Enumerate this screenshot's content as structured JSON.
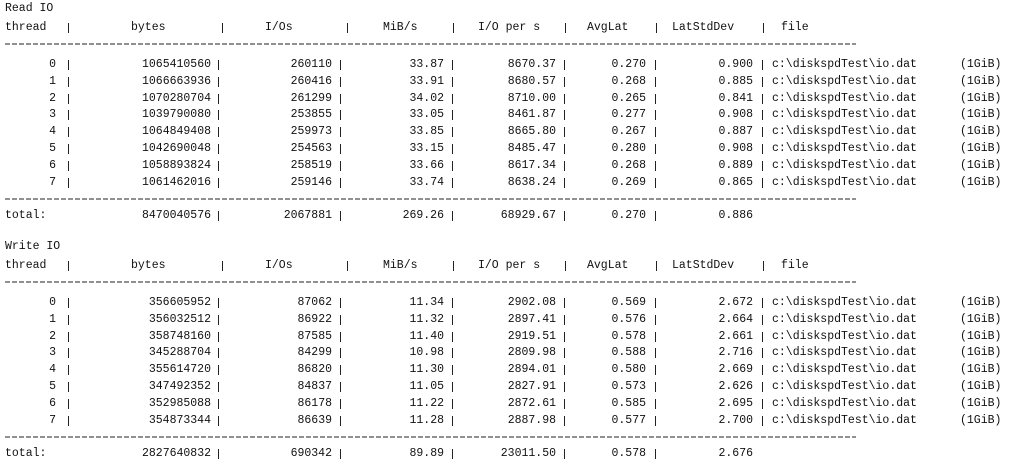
{
  "sections": [
    {
      "title": "Read IO",
      "headers": [
        "thread",
        "bytes",
        "I/Os",
        "MiB/s",
        "I/O per s",
        "AvgLat",
        "LatStdDev",
        "file"
      ],
      "rows": [
        [
          "0",
          "1065410560",
          "260110",
          "33.87",
          "8670.37",
          "0.270",
          "0.900",
          "c:\\diskspdTest\\io.dat",
          "(1GiB)"
        ],
        [
          "1",
          "1066663936",
          "260416",
          "33.91",
          "8680.57",
          "0.268",
          "0.885",
          "c:\\diskspdTest\\io.dat",
          "(1GiB)"
        ],
        [
          "2",
          "1070280704",
          "261299",
          "34.02",
          "8710.00",
          "0.265",
          "0.841",
          "c:\\diskspdTest\\io.dat",
          "(1GiB)"
        ],
        [
          "3",
          "1039790080",
          "253855",
          "33.05",
          "8461.87",
          "0.277",
          "0.908",
          "c:\\diskspdTest\\io.dat",
          "(1GiB)"
        ],
        [
          "4",
          "1064849408",
          "259973",
          "33.85",
          "8665.80",
          "0.267",
          "0.887",
          "c:\\diskspdTest\\io.dat",
          "(1GiB)"
        ],
        [
          "5",
          "1042690048",
          "254563",
          "33.15",
          "8485.47",
          "0.280",
          "0.908",
          "c:\\diskspdTest\\io.dat",
          "(1GiB)"
        ],
        [
          "6",
          "1058893824",
          "258519",
          "33.66",
          "8617.34",
          "0.268",
          "0.889",
          "c:\\diskspdTest\\io.dat",
          "(1GiB)"
        ],
        [
          "7",
          "1061462016",
          "259146",
          "33.74",
          "8638.24",
          "0.269",
          "0.865",
          "c:\\diskspdTest\\io.dat",
          "(1GiB)"
        ]
      ],
      "total": [
        "total:",
        "8470040576",
        "2067881",
        "269.26",
        "68929.67",
        "0.270",
        "0.886"
      ]
    },
    {
      "title": "Write IO",
      "headers": [
        "thread",
        "bytes",
        "I/Os",
        "MiB/s",
        "I/O per s",
        "AvgLat",
        "LatStdDev",
        "file"
      ],
      "rows": [
        [
          "0",
          "356605952",
          "87062",
          "11.34",
          "2902.08",
          "0.569",
          "2.672",
          "c:\\diskspdTest\\io.dat",
          "(1GiB)"
        ],
        [
          "1",
          "356032512",
          "86922",
          "11.32",
          "2897.41",
          "0.576",
          "2.664",
          "c:\\diskspdTest\\io.dat",
          "(1GiB)"
        ],
        [
          "2",
          "358748160",
          "87585",
          "11.40",
          "2919.51",
          "0.578",
          "2.661",
          "c:\\diskspdTest\\io.dat",
          "(1GiB)"
        ],
        [
          "3",
          "345288704",
          "84299",
          "10.98",
          "2809.98",
          "0.588",
          "2.716",
          "c:\\diskspdTest\\io.dat",
          "(1GiB)"
        ],
        [
          "4",
          "355614720",
          "86820",
          "11.30",
          "2894.01",
          "0.580",
          "2.669",
          "c:\\diskspdTest\\io.dat",
          "(1GiB)"
        ],
        [
          "5",
          "347492352",
          "84837",
          "11.05",
          "2827.91",
          "0.573",
          "2.626",
          "c:\\diskspdTest\\io.dat",
          "(1GiB)"
        ],
        [
          "6",
          "352985088",
          "86178",
          "11.22",
          "2872.61",
          "0.585",
          "2.695",
          "c:\\diskspdTest\\io.dat",
          "(1GiB)"
        ],
        [
          "7",
          "354873344",
          "86639",
          "11.28",
          "2887.98",
          "0.577",
          "2.700",
          "c:\\diskspdTest\\io.dat",
          "(1GiB)"
        ]
      ],
      "total": [
        "total:",
        "2827640832",
        "690342",
        "89.89",
        "23011.50",
        "0.578",
        "2.676"
      ]
    }
  ]
}
